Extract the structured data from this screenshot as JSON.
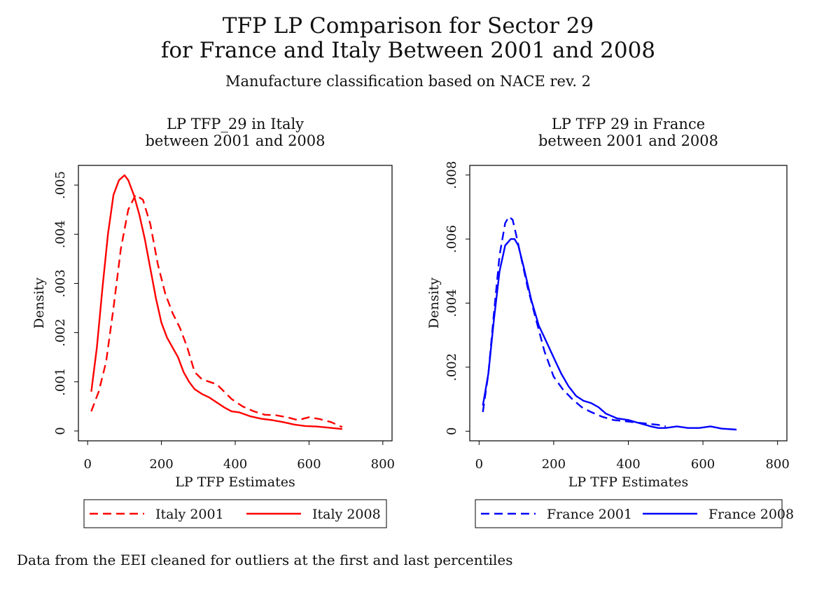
{
  "figure": {
    "title_line1": "TFP LP Comparison for Sector 29",
    "title_line2": "for France and Italy Between 2001 and 2008",
    "subtitle": "Manufacture classification based on NACE rev. 2",
    "note": "Data from the EEI cleaned for outliers at the first and last percentiles"
  },
  "chart_data": [
    {
      "type": "line",
      "title_line1": "LP TFP_29 in Italy",
      "title_line2": "between 2001 and 2008",
      "xlabel": "LP TFP Estimates",
      "ylabel": "Density",
      "xlim": [
        -25,
        825
      ],
      "ylim": [
        -0.0002,
        0.0054
      ],
      "xticks": [
        0,
        200,
        400,
        600,
        800
      ],
      "xtick_labels": [
        "0",
        "200",
        "400",
        "600",
        "800"
      ],
      "yticks": [
        0,
        0.001,
        0.002,
        0.003,
        0.004,
        0.005
      ],
      "ytick_labels": [
        "0",
        ".001",
        ".002",
        ".003",
        ".004",
        ".005"
      ],
      "grid": false,
      "legend_position": "bottom",
      "series": [
        {
          "name": "Italy 2001",
          "color": "#ff0000",
          "dash": "dashed",
          "x": [
            10,
            30,
            50,
            70,
            90,
            110,
            130,
            150,
            170,
            190,
            210,
            230,
            250,
            270,
            290,
            310,
            330,
            350,
            370,
            390,
            420,
            450,
            480,
            510,
            540,
            570,
            600,
            630,
            660,
            690
          ],
          "y": [
            0.0004,
            0.0008,
            0.0014,
            0.0025,
            0.0037,
            0.0045,
            0.0048,
            0.0047,
            0.0042,
            0.0034,
            0.0028,
            0.0024,
            0.0021,
            0.0017,
            0.0012,
            0.00105,
            0.001,
            0.00095,
            0.0008,
            0.00065,
            0.0005,
            0.0004,
            0.00033,
            0.00032,
            0.00028,
            0.00022,
            0.00028,
            0.00024,
            0.00018,
            8e-05
          ]
        },
        {
          "name": "Italy 2008",
          "color": "#ff0000",
          "dash": "solid",
          "x": [
            10,
            25,
            40,
            55,
            70,
            85,
            100,
            110,
            125,
            140,
            155,
            170,
            185,
            200,
            215,
            230,
            245,
            260,
            275,
            290,
            310,
            330,
            350,
            370,
            390,
            410,
            440,
            470,
            500,
            530,
            560,
            590,
            620,
            650,
            690
          ],
          "y": [
            0.0008,
            0.0017,
            0.0029,
            0.004,
            0.0048,
            0.0051,
            0.0052,
            0.0051,
            0.0048,
            0.0044,
            0.0039,
            0.0033,
            0.0027,
            0.0022,
            0.0019,
            0.0017,
            0.0015,
            0.0012,
            0.001,
            0.00085,
            0.00075,
            0.00068,
            0.00058,
            0.00048,
            0.0004,
            0.00038,
            0.0003,
            0.00025,
            0.00022,
            0.00018,
            0.00013,
            0.0001,
            9e-05,
            7e-05,
            4e-05
          ]
        }
      ]
    },
    {
      "type": "line",
      "title_line1": "LP TFP 29 in France",
      "title_line2": "between 2001 and 2008",
      "xlabel": "LP TFP Estimates",
      "ylabel": "Density",
      "xlim": [
        -25,
        825
      ],
      "ylim": [
        -0.0003,
        0.0083
      ],
      "xticks": [
        0,
        200,
        400,
        600,
        800
      ],
      "xtick_labels": [
        "0",
        "200",
        "400",
        "600",
        "800"
      ],
      "yticks": [
        0,
        0.002,
        0.004,
        0.006,
        0.008
      ],
      "ytick_labels": [
        "0",
        ".002",
        ".004",
        ".006",
        ".008"
      ],
      "grid": false,
      "legend_position": "bottom",
      "series": [
        {
          "name": "France 2001",
          "color": "#0000ff",
          "dash": "dashed",
          "x": [
            10,
            25,
            40,
            55,
            70,
            80,
            90,
            100,
            115,
            130,
            150,
            175,
            200,
            225,
            250,
            275,
            300,
            330,
            360,
            400,
            440,
            480,
            500
          ],
          "y": [
            0.0006,
            0.0018,
            0.0037,
            0.0055,
            0.0065,
            0.0067,
            0.0066,
            0.0061,
            0.0053,
            0.0045,
            0.0036,
            0.0025,
            0.0017,
            0.0013,
            0.001,
            0.00075,
            0.0006,
            0.00045,
            0.00035,
            0.0003,
            0.00025,
            0.0002,
            0.00015
          ]
        },
        {
          "name": "France 2008",
          "color": "#0000ff",
          "dash": "solid",
          "x": [
            10,
            25,
            40,
            55,
            70,
            85,
            95,
            105,
            120,
            140,
            160,
            180,
            200,
            220,
            240,
            260,
            280,
            300,
            320,
            340,
            370,
            400,
            430,
            460,
            480,
            500,
            530,
            560,
            590,
            620,
            650,
            690
          ],
          "y": [
            0.0008,
            0.0018,
            0.0035,
            0.005,
            0.0058,
            0.006,
            0.006,
            0.0058,
            0.0051,
            0.0041,
            0.0033,
            0.0028,
            0.0023,
            0.0018,
            0.0014,
            0.0011,
            0.00095,
            0.00088,
            0.00075,
            0.00055,
            0.0004,
            0.00035,
            0.00025,
            0.00015,
            0.0001,
            0.0001,
            0.00015,
            0.0001,
            0.0001,
            0.00015,
            8e-05,
            5e-05
          ]
        }
      ]
    }
  ]
}
